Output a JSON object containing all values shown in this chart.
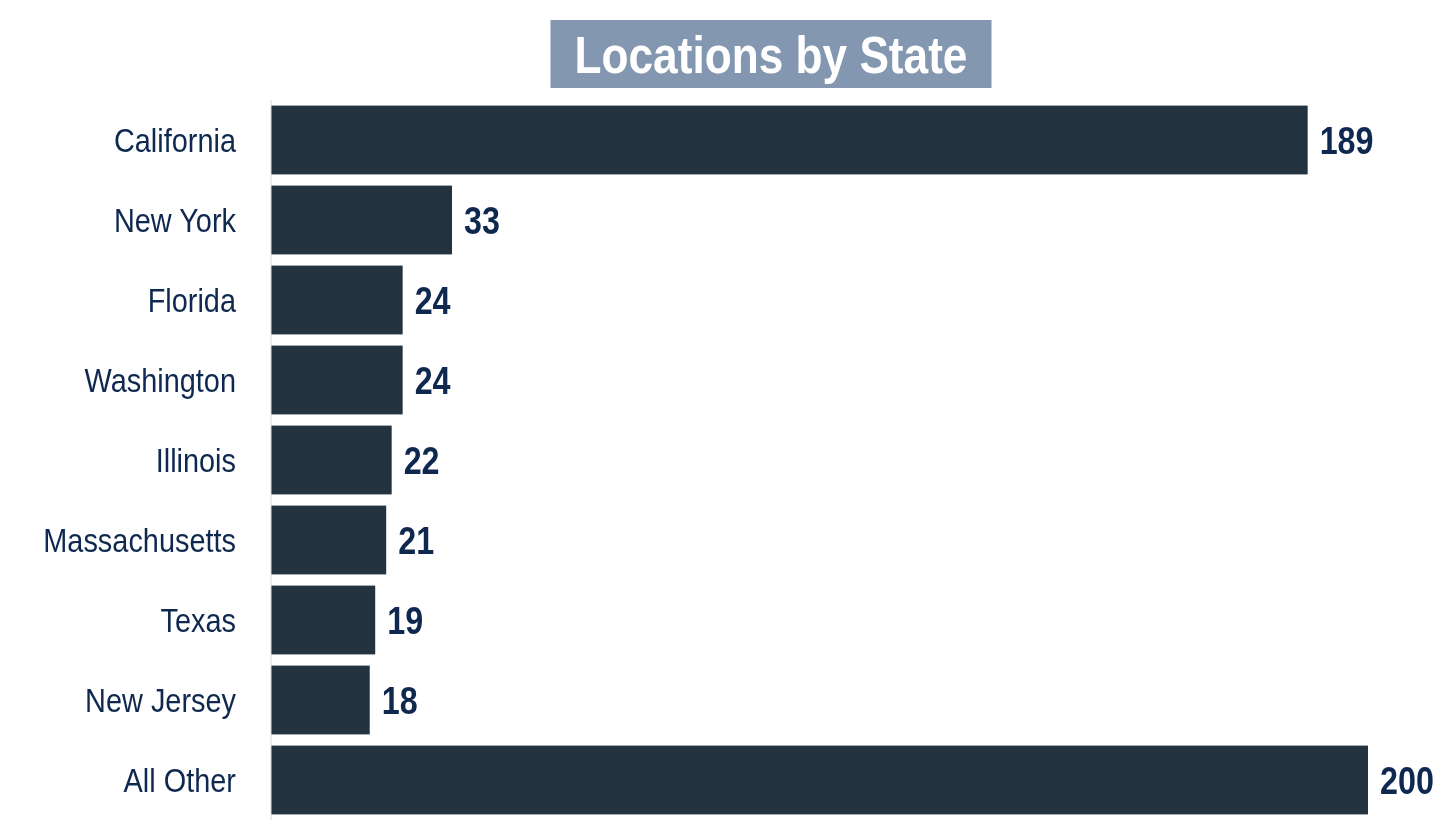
{
  "chart_data": {
    "type": "bar",
    "orientation": "horizontal",
    "title": "Locations by State",
    "categories": [
      "California",
      "New York",
      "Florida",
      "Washington",
      "Illinois",
      "Massachusetts",
      "Texas",
      "New Jersey",
      "All Other"
    ],
    "values": [
      189,
      33,
      24,
      24,
      22,
      21,
      19,
      18,
      200
    ],
    "color": "#22333f",
    "data_labels": true
  }
}
